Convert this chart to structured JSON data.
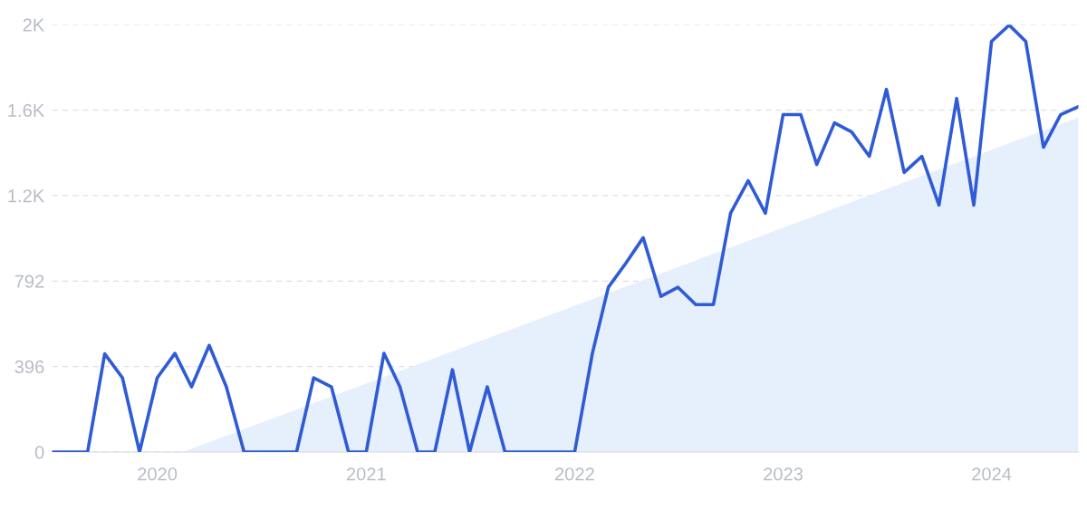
{
  "chart_data": {
    "type": "line",
    "x": [
      "2019-07",
      "2019-08",
      "2019-09",
      "2019-10",
      "2019-11",
      "2019-12",
      "2020-01",
      "2020-02",
      "2020-03",
      "2020-04",
      "2020-05",
      "2020-06",
      "2020-07",
      "2020-08",
      "2020-09",
      "2020-10",
      "2020-11",
      "2020-12",
      "2021-01",
      "2021-02",
      "2021-03",
      "2021-04",
      "2021-05",
      "2021-06",
      "2021-07",
      "2021-08",
      "2021-09",
      "2021-10",
      "2021-11",
      "2021-12",
      "2022-01",
      "2022-02",
      "2022-03",
      "2022-04",
      "2022-05",
      "2022-06",
      "2022-07",
      "2022-08",
      "2022-09",
      "2022-10",
      "2022-11",
      "2022-12",
      "2023-01",
      "2023-02",
      "2023-03",
      "2023-04",
      "2023-05",
      "2023-06",
      "2023-07",
      "2023-08",
      "2023-09",
      "2023-10",
      "2023-11",
      "2023-12",
      "2024-01",
      "2024-02",
      "2024-03",
      "2024-04",
      "2024-05",
      "2024-06"
    ],
    "series": [
      {
        "type": "line",
        "color": "#2f5bd6",
        "values": [
          0,
          0,
          0,
          455,
          344,
          0,
          344,
          457,
          302,
          494,
          302,
          0,
          0,
          0,
          0,
          344,
          302,
          0,
          0,
          457,
          302,
          0,
          0,
          381,
          0,
          302,
          0,
          0,
          0,
          0,
          0,
          457,
          763,
          876,
          993,
          721,
          763,
          683,
          683,
          1106,
          1257,
          1106,
          1563,
          1563,
          1332,
          1525,
          1483,
          1370,
          1680,
          1295,
          1370,
          1144,
          1638,
          1144,
          1902,
          1978,
          1902,
          1412,
          1563,
          1600
        ]
      },
      {
        "type": "area",
        "color": "#e6effc",
        "x": [
          "2020-02-15",
          "2024-06"
        ],
        "values": [
          0,
          1550
        ]
      }
    ],
    "xlim": [
      "2019-07",
      "2024-06"
    ],
    "xticks": [
      {
        "value": "2020-01",
        "label": "2020"
      },
      {
        "value": "2021-01",
        "label": "2021"
      },
      {
        "value": "2022-01",
        "label": "2022"
      },
      {
        "value": "2023-01",
        "label": "2023"
      },
      {
        "value": "2024-01",
        "label": "2024"
      }
    ],
    "ylim": [
      0,
      1980
    ],
    "yticks": [
      0,
      396,
      792,
      {
        "value": 1188,
        "label": "1.2K"
      },
      {
        "value": 1584,
        "label": "1.6K"
      },
      {
        "value": 1980,
        "label": "2K"
      }
    ],
    "grid": "y"
  }
}
